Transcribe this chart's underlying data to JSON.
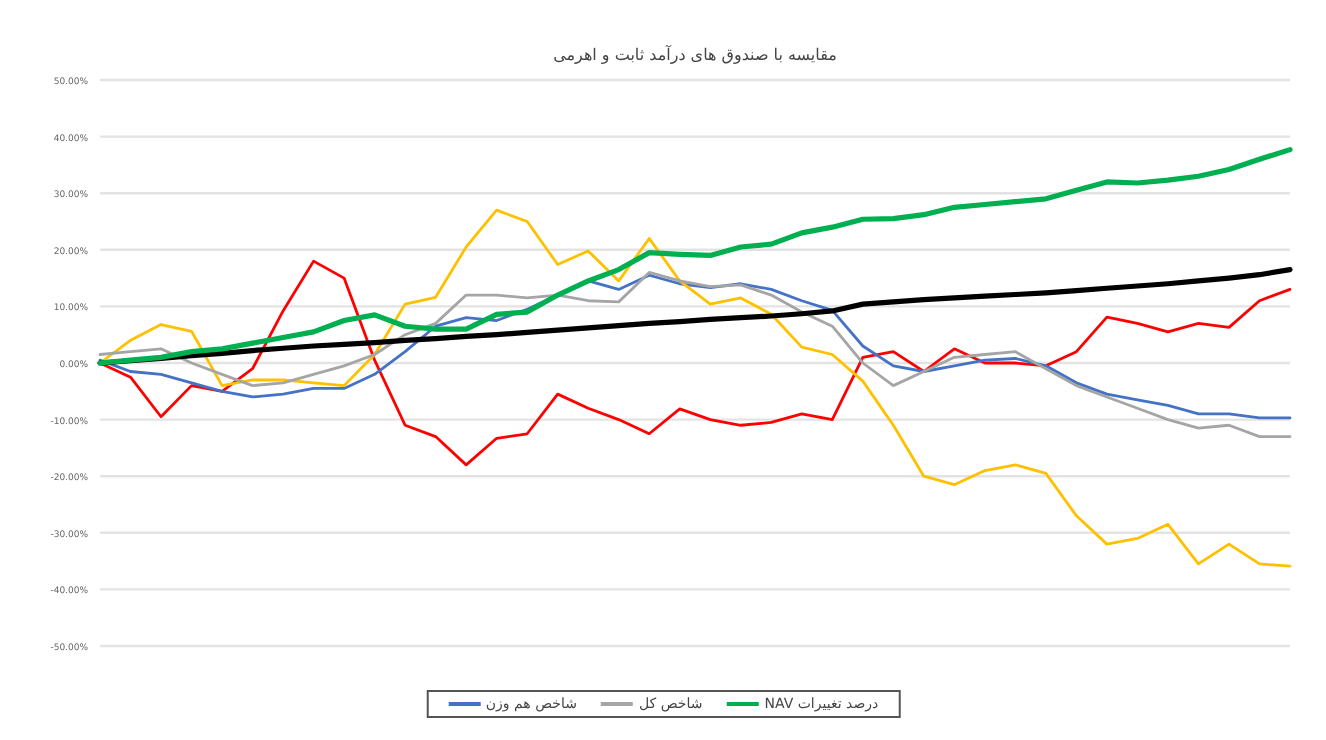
{
  "chart_data": {
    "type": "line",
    "title": "مقایسه با صندوق های درآمد ثابت و اهرمی",
    "categories": [
      null,
      null,
      null,
      null,
      null,
      null,
      null,
      null,
      null,
      null,
      null,
      null,
      null,
      null,
      null,
      null,
      null,
      null,
      null,
      null,
      null,
      null,
      null,
      null,
      null,
      null,
      null,
      null,
      null,
      null,
      null,
      null,
      null,
      null,
      null,
      null,
      null,
      null,
      null,
      null
    ],
    "ylim": [
      -50,
      50
    ],
    "yticks": [
      {
        "value": -50,
        "label": "-50.00%"
      },
      {
        "value": -40,
        "label": "-40.00%"
      },
      {
        "value": -30,
        "label": "-30.00%"
      },
      {
        "value": -20,
        "label": "-20.00%"
      },
      {
        "value": -10,
        "label": "-10.00%"
      },
      {
        "value": 0,
        "label": "0.00%"
      },
      {
        "value": 10,
        "label": "10.00%"
      },
      {
        "value": 20,
        "label": "20.00%"
      },
      {
        "value": 30,
        "label": "30.00%"
      },
      {
        "value": 40,
        "label": "40.00%"
      },
      {
        "value": 50,
        "label": "50.00%"
      }
    ],
    "grid": "y",
    "legend": "bottom",
    "marker": "none",
    "line_style": "solid",
    "series": [
      {
        "name": "درصد تغییرات NAV",
        "color": "#00b050",
        "values": [
          0,
          0.5,
          1,
          2,
          2.5,
          3.5,
          4.5,
          5.5,
          7.5,
          8.5,
          6.5,
          6,
          6,
          8.6,
          9,
          12,
          14.5,
          16.5,
          19.5,
          19.2,
          19,
          20.5,
          21,
          23,
          24,
          25.4,
          25.5,
          26.2,
          27.5,
          28,
          28.5,
          29,
          30.5,
          32,
          31.8,
          32.3,
          33,
          34.2,
          36,
          37.7
        ]
      },
      {
        "color": "#000000",
        "values": [
          0,
          0.4,
          0.8,
          1.3,
          1.7,
          2.2,
          2.6,
          3,
          3.3,
          3.6,
          4,
          4.3,
          4.7,
          5,
          5.4,
          5.8,
          6.2,
          6.6,
          7,
          7.3,
          7.7,
          8,
          8.3,
          8.7,
          9.2,
          10.4,
          10.8,
          11.2,
          11.5,
          11.8,
          12.1,
          12.4,
          12.8,
          13.2,
          13.6,
          14,
          14.5,
          15,
          15.6,
          16.5
        ]
      },
      {
        "name": "شاخص کل",
        "color": "#a5a5a5",
        "values": [
          1.5,
          2,
          2.5,
          0,
          -2,
          -4,
          -3.5,
          -2,
          -0.5,
          1.5,
          5,
          7,
          12,
          12,
          11.5,
          12,
          11,
          10.8,
          16,
          14.5,
          13.5,
          13.8,
          12,
          9,
          6.5,
          0,
          -4,
          -1.5,
          1,
          1.5,
          2,
          -1,
          -4,
          -6,
          -8,
          -10,
          -11.5,
          -11,
          -13,
          -13
        ]
      },
      {
        "color": "#ffc000",
        "values": [
          0,
          4,
          6.8,
          5.6,
          -4,
          -3,
          -3,
          -3.5,
          -4,
          1.5,
          10.4,
          11.6,
          20.5,
          27,
          25,
          17.4,
          19.8,
          14.5,
          22,
          14.5,
          10.4,
          11.5,
          8.6,
          2.8,
          1.5,
          -3.2,
          -11,
          -20,
          -21.5,
          -19,
          -18,
          -19.5,
          -27,
          -32,
          -31,
          -28.5,
          -35.5,
          -32,
          -35.5,
          -35.9
        ]
      },
      {
        "name": "شاخص هم وزن",
        "color": "#4472c4",
        "values": [
          0.5,
          -1.5,
          -2,
          -3.5,
          -5,
          -6,
          -5.5,
          -4.5,
          -4.5,
          -2,
          2,
          6.5,
          8,
          7.5,
          9.5,
          12,
          14.5,
          13,
          15.5,
          14,
          13.3,
          14,
          13,
          11,
          9.3,
          3,
          -0.5,
          -1.5,
          -0.5,
          0.5,
          0.8,
          -0.5,
          -3.5,
          -5.5,
          -6.5,
          -7.5,
          -9,
          -9,
          -9.7,
          -9.7
        ]
      },
      {
        "color": "#ff0000",
        "values": [
          0,
          -2.5,
          -9.5,
          -4,
          -5,
          -1,
          9.2,
          18,
          15,
          0.5,
          -11,
          -13,
          -18,
          -13.3,
          -12.5,
          -5.5,
          -8,
          -10,
          -12.5,
          -8.1,
          -10,
          -11,
          -10.5,
          -9,
          -10,
          1,
          2,
          -1.5,
          2.5,
          0,
          0,
          -0.5,
          2,
          8.1,
          7,
          5.5,
          7,
          6.3,
          11,
          13
        ]
      }
    ]
  }
}
